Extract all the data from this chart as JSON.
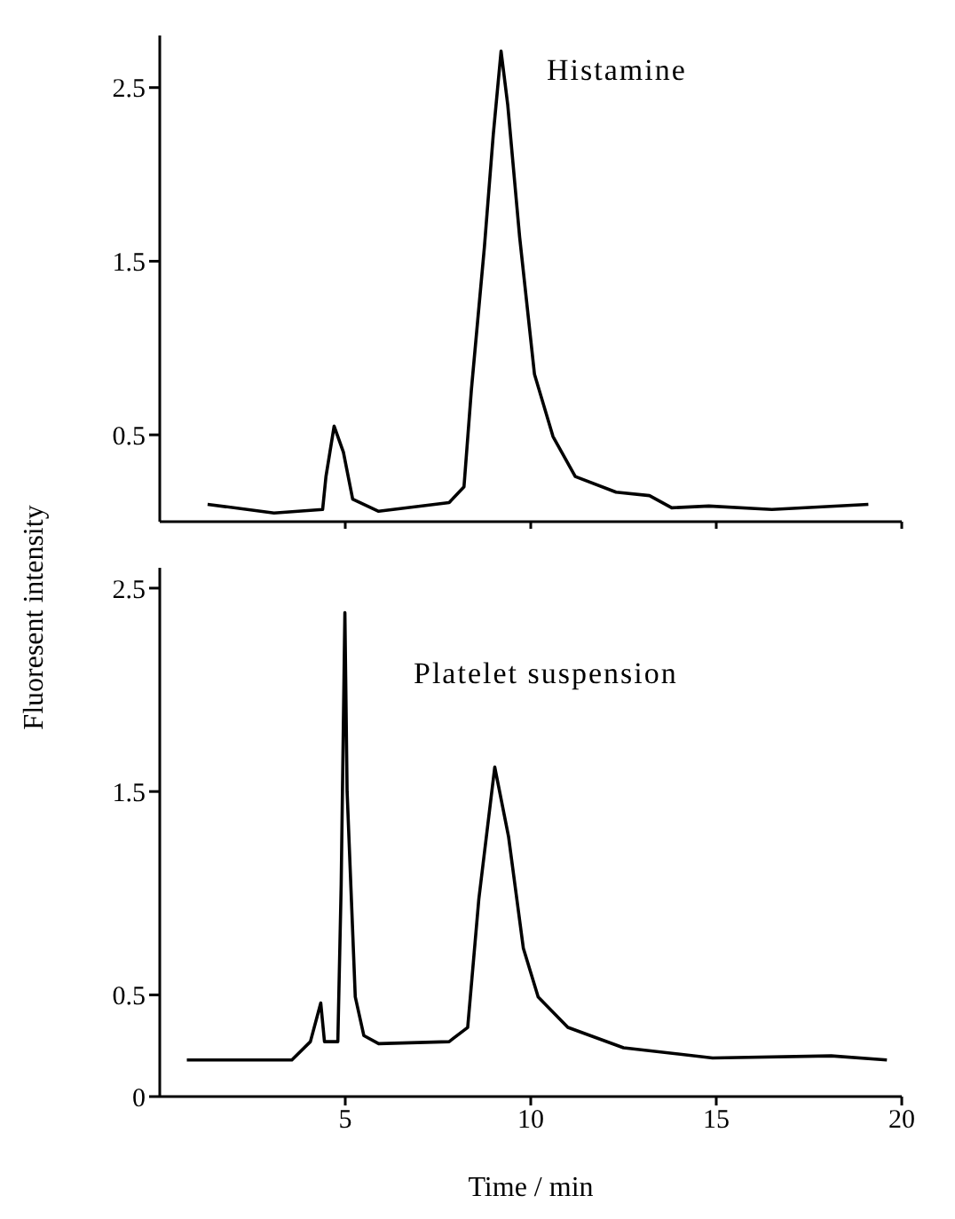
{
  "chart_data": [
    {
      "type": "line",
      "ylabel": "Fluoresent intensity",
      "annotations": [
        "Histamine"
      ],
      "xlim": [
        0,
        20
      ],
      "xticks": [
        5,
        10,
        15,
        20
      ],
      "ylim": [
        0,
        2.8
      ],
      "yticks": [
        0.5,
        1.5,
        2.5
      ],
      "tick_labels": "y",
      "marker": "none",
      "series": [
        {
          "color": "#000000",
          "x": [
            1.29,
            3.08,
            4.39,
            4.48,
            4.7,
            4.95,
            5.2,
            5.9,
            7.8,
            8.2,
            8.4,
            8.75,
            8.99,
            9.2,
            9.38,
            9.7,
            10.1,
            10.6,
            11.2,
            12.3,
            13.2,
            13.8,
            14.8,
            16.5,
            19.1
          ],
          "values": [
            0.1,
            0.05,
            0.07,
            0.26,
            0.55,
            0.4,
            0.13,
            0.06,
            0.11,
            0.2,
            0.76,
            1.58,
            2.23,
            2.71,
            2.4,
            1.64,
            0.85,
            0.49,
            0.26,
            0.17,
            0.15,
            0.08,
            0.09,
            0.07,
            0.1
          ]
        }
      ]
    },
    {
      "type": "line",
      "xlabel": "Time / min",
      "annotations": [
        "Platelet suspension"
      ],
      "xlim": [
        0,
        20
      ],
      "xticks": [
        5,
        10,
        15,
        20
      ],
      "ylim": [
        0,
        2.6
      ],
      "yticks": [
        0,
        0.5,
        1.5,
        2.5
      ],
      "marker": "none",
      "series": [
        {
          "color": "#000000",
          "x": [
            0.73,
            3.56,
            4.06,
            4.34,
            4.44,
            4.8,
            4.89,
            4.99,
            5.05,
            5.27,
            5.5,
            5.9,
            7.8,
            8.3,
            8.6,
            9.03,
            9.4,
            9.8,
            10.2,
            11.0,
            12.5,
            14.9,
            18.1,
            19.6
          ],
          "values": [
            0.18,
            0.18,
            0.27,
            0.46,
            0.27,
            0.27,
            1.04,
            2.38,
            1.5,
            0.49,
            0.3,
            0.26,
            0.27,
            0.34,
            0.97,
            1.62,
            1.28,
            0.73,
            0.49,
            0.34,
            0.24,
            0.19,
            0.2,
            0.18
          ]
        }
      ]
    }
  ]
}
